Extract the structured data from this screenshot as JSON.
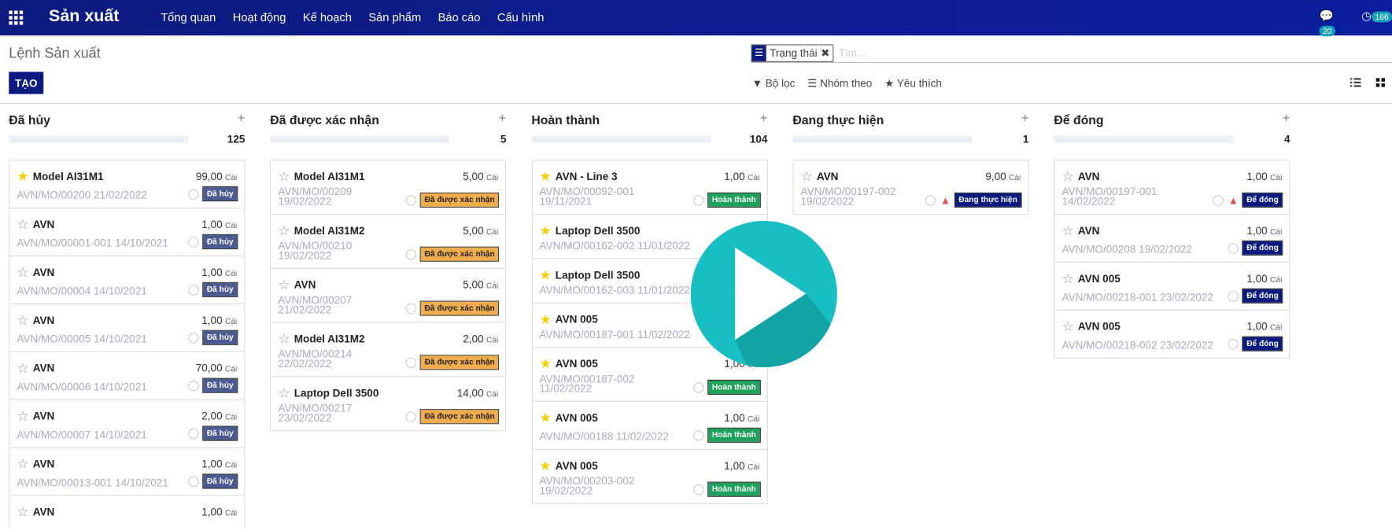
{
  "navbar": {
    "app": "Sản xuất",
    "menu": [
      "Tổng quan",
      "Hoạt động",
      "Kế hoạch",
      "Sản phẩm",
      "Báo cáo",
      "Cấu hình"
    ],
    "messages": "20",
    "activities": "166"
  },
  "breadcrumb": "Lệnh Sản xuất",
  "create_button": "TẠO",
  "search": {
    "facet": "Trạng thái",
    "placeholder": "Tìm..."
  },
  "filters": [
    "Bộ lọc",
    "Nhóm theo",
    "Yêu thích"
  ],
  "unit": "Cái",
  "columns": [
    {
      "title": "Đã hủy",
      "count": "125",
      "cards": [
        {
          "name": "Model AI31M1",
          "qty": "99,00",
          "ref": "AVN/MO/00200 21/02/2022",
          "status": "Đã hủy",
          "starred": true
        },
        {
          "name": "AVN",
          "qty": "1,00",
          "ref": "AVN/MO/00001-001 14/10/2021",
          "status": "Đã hủy",
          "starred": false
        },
        {
          "name": "AVN",
          "qty": "1,00",
          "ref": "AVN/MO/00004 14/10/2021",
          "status": "Đã hủy",
          "starred": false
        },
        {
          "name": "AVN",
          "qty": "1,00",
          "ref": "AVN/MO/00005 14/10/2021",
          "status": "Đã hủy",
          "starred": false
        },
        {
          "name": "AVN",
          "qty": "70,00",
          "ref": "AVN/MO/00006 14/10/2021",
          "status": "Đã hủy",
          "starred": false
        },
        {
          "name": "AVN",
          "qty": "2,00",
          "ref": "AVN/MO/00007 14/10/2021",
          "status": "Đã hủy",
          "starred": false
        },
        {
          "name": "AVN",
          "qty": "1,00",
          "ref": "AVN/MO/00013-001 14/10/2021",
          "status": "Đã hủy",
          "starred": false
        },
        {
          "name": "AVN",
          "qty": "1,00",
          "ref": null,
          "status": null,
          "starred": false
        }
      ]
    },
    {
      "title": "Đã được xác nhận",
      "count": "5",
      "cards": [
        {
          "name": "Model AI31M1",
          "qty": "5,00",
          "ref": "AVN/MO/00209 19/02/2022",
          "status": "Đã được xác nhận",
          "starred": false
        },
        {
          "name": "Model AI31M2",
          "qty": "5,00",
          "ref": "AVN/MO/00210 19/02/2022",
          "status": "Đã được xác nhận",
          "starred": false
        },
        {
          "name": "AVN",
          "qty": "5,00",
          "ref": "AVN/MO/00207 21/02/2022",
          "status": "Đã được xác nhận",
          "starred": false
        },
        {
          "name": "Model AI31M2",
          "qty": "2,00",
          "ref": "AVN/MO/00214 22/02/2022",
          "status": "Đã được xác nhận",
          "starred": false
        },
        {
          "name": "Laptop Dell 3500",
          "qty": "14,00",
          "ref": "AVN/MO/00217 23/02/2022",
          "status": "Đã được xác nhận",
          "starred": false
        }
      ]
    },
    {
      "title": "Hoàn thành",
      "count": "104",
      "cards": [
        {
          "name": "AVN - Line 3",
          "qty": "1,00",
          "ref": "AVN/MO/00092-001 19/11/2021",
          "status": "Hoàn thành",
          "starred": true
        },
        {
          "name": "Laptop Dell 3500",
          "qty": null,
          "ref": "AVN/MO/00162-002 11/01/2022",
          "status": null,
          "starred": true
        },
        {
          "name": "Laptop Dell 3500",
          "qty": null,
          "ref": "AVN/MO/00162-003 11/01/2022",
          "status": null,
          "starred": true
        },
        {
          "name": "AVN 005",
          "qty": null,
          "ref": "AVN/MO/00187-001 11/02/2022",
          "status": null,
          "starred": true
        },
        {
          "name": "AVN 005",
          "qty": "1,00",
          "ref": "AVN/MO/00187-002 11/02/2022",
          "status": "Hoàn thành",
          "starred": true
        },
        {
          "name": "AVN 005",
          "qty": "1,00",
          "ref": "AVN/MO/00188 11/02/2022",
          "status": "Hoàn thành",
          "starred": true
        },
        {
          "name": "AVN 005",
          "qty": "1,00",
          "ref": "AVN/MO/00203-002 19/02/2022",
          "status": "Hoàn thành",
          "starred": true
        }
      ]
    },
    {
      "title": "Đang thực hiện",
      "count": "1",
      "cards": [
        {
          "name": "AVN",
          "qty": "9,00",
          "ref": "AVN/MO/00197-002 19/02/2022",
          "status": "Đang thực hiện",
          "starred": false,
          "warning": true
        }
      ]
    },
    {
      "title": "Để đóng",
      "count": "4",
      "cards": [
        {
          "name": "AVN",
          "qty": "1,00",
          "ref": "AVN/MO/00197-001 14/02/2022",
          "status": "Để đóng",
          "starred": false,
          "warning": true
        },
        {
          "name": "AVN",
          "qty": "1,00",
          "ref": "AVN/MO/00208 19/02/2022",
          "status": "Để đóng",
          "starred": false
        },
        {
          "name": "AVN 005",
          "qty": "1,00",
          "ref": "AVN/MO/00218-001 23/02/2022",
          "status": "Để đóng",
          "starred": false
        },
        {
          "name": "AVN 005",
          "qty": "1,00",
          "ref": "AVN/MO/00218-002 23/02/2022",
          "status": "Để đóng",
          "starred": false
        }
      ]
    }
  ]
}
